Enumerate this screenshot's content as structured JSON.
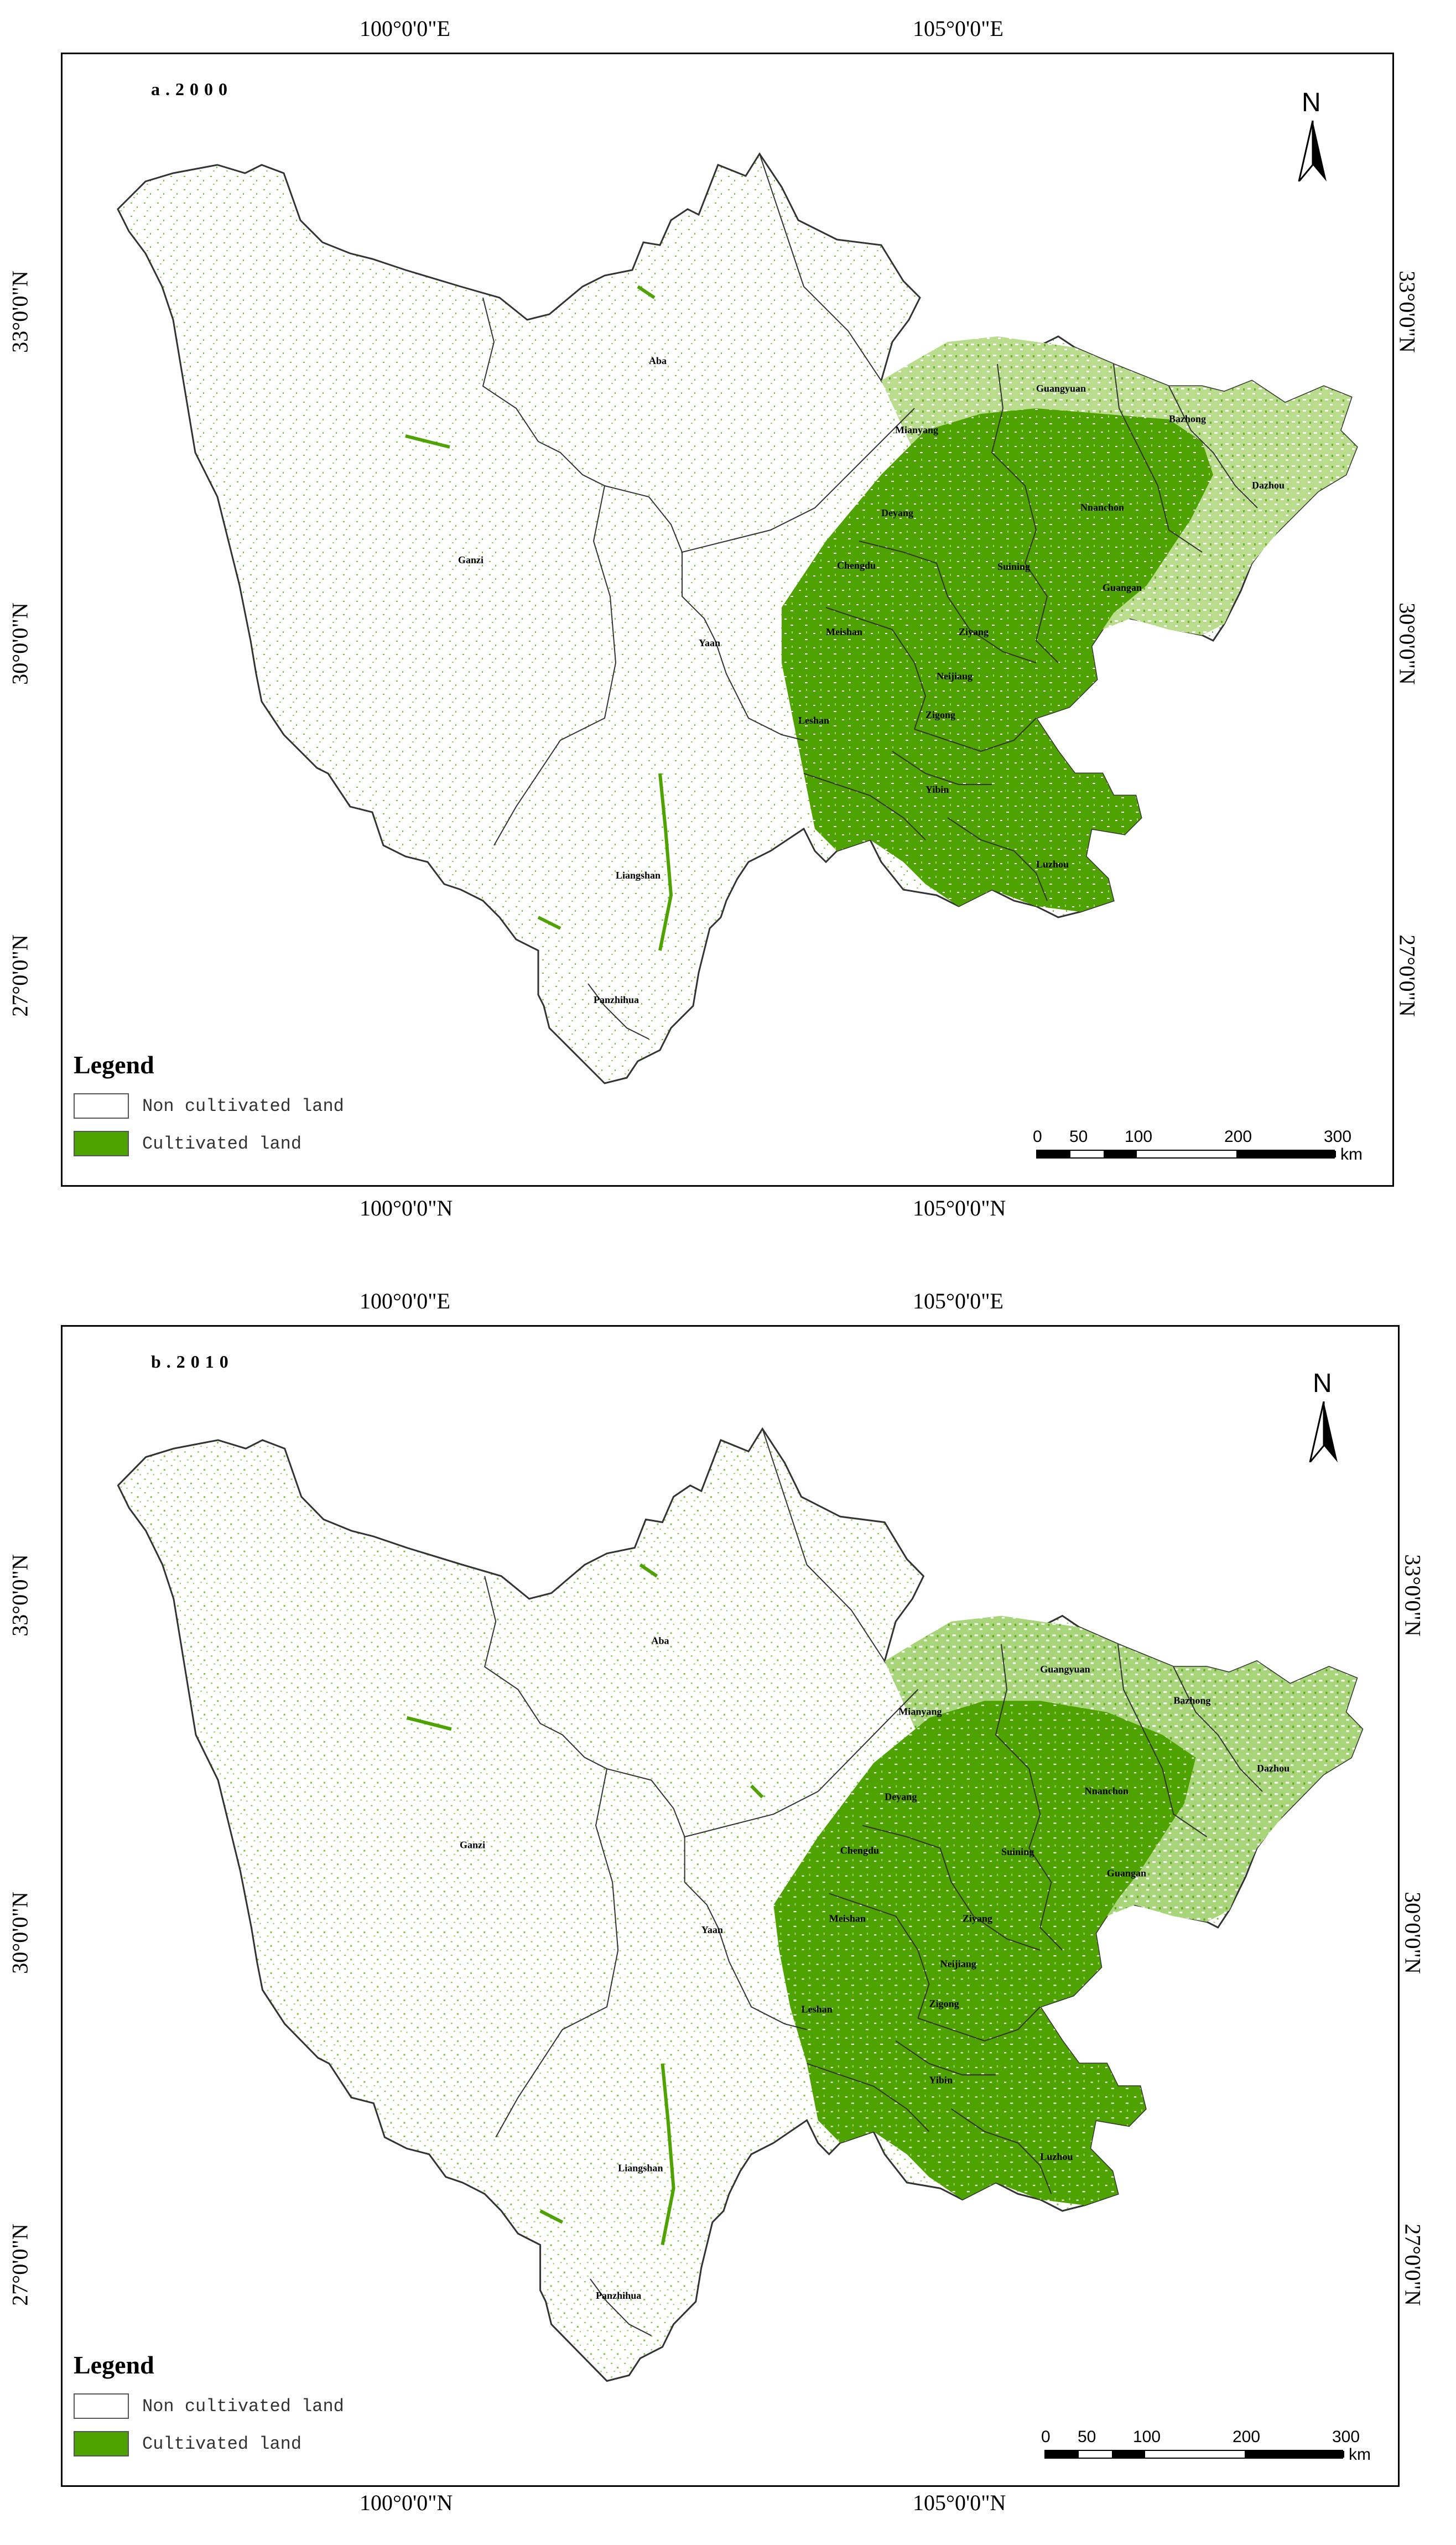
{
  "colors": {
    "cultivated": "#4ea300",
    "cultivated_light": "#8cc640",
    "boundary": "#333333"
  },
  "panels": [
    {
      "title": "a.2000",
      "lon_labels_top": [
        "100°0'0\"E",
        "105°0'0\"E"
      ],
      "lon_labels_bottom": [
        "100°0'0\"N",
        "105°0'0\"N"
      ],
      "lat_labels": [
        "33°0'0\"N",
        "30°0'0\"N",
        "27°0'0\"N"
      ],
      "cities": [
        "Aba",
        "Ganzi",
        "Guangyuan",
        "Bazhong",
        "Mianyang",
        "Dazhou",
        "Deyang",
        "Nnanchon",
        "Chengdu",
        "Suining",
        "Guangan",
        "Yaan",
        "Meishan",
        "Ziyang",
        "Neijiang",
        "Leshan",
        "Zigong",
        "Yibin",
        "Luzhou",
        "Liangshan",
        "Panzhihua"
      ],
      "legend": {
        "title": "Legend",
        "items": [
          "Non cultivated land",
          "Cultivated land"
        ]
      },
      "north": "N",
      "scale": {
        "ticks": [
          "0",
          "50",
          "100",
          "200",
          "300"
        ],
        "unit": "km"
      }
    },
    {
      "title": "b.2010",
      "lon_labels_top": [
        "100°0'0\"E",
        "105°0'0\"E"
      ],
      "lon_labels_bottom": [
        "100°0'0\"N",
        "105°0'0\"N"
      ],
      "lat_labels": [
        "33°0'0\"N",
        "30°0'0\"N",
        "27°0'0\"N"
      ],
      "cities": [
        "Aba",
        "Ganzi",
        "Guangyuan",
        "Bazhong",
        "Mianyang",
        "Dazhou",
        "Deyang",
        "Nnanchon",
        "Chengdu",
        "Suining",
        "Guangan",
        "Yaan",
        "Meishan",
        "Ziyang",
        "Neijiang",
        "Leshan",
        "Zigong",
        "Yibin",
        "Luzhou",
        "Liangshan",
        "Panzhihua"
      ],
      "legend": {
        "title": "Legend",
        "items": [
          "Non cultivated land",
          "Cultivated land"
        ]
      },
      "north": "N",
      "scale": {
        "ticks": [
          "0",
          "50",
          "100",
          "200",
          "300"
        ],
        "unit": "km"
      }
    }
  ]
}
